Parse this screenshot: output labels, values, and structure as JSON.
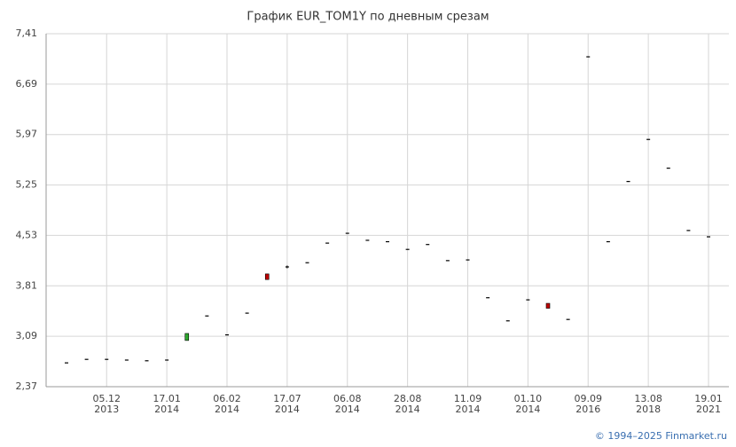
{
  "chart_data": {
    "type": "candlestick",
    "title": "График EUR_TOM1Y по дневным срезам",
    "categories": [
      null,
      null,
      "05.12",
      null,
      null,
      "17.01",
      null,
      null,
      "06.02",
      null,
      null,
      "17.07",
      null,
      null,
      "06.08",
      null,
      null,
      "28.08",
      null,
      null,
      "11.09",
      null,
      null,
      "01.10",
      null,
      null,
      "09.09",
      null,
      null,
      "13.08",
      null,
      null,
      "19.01"
    ],
    "category_years": [
      null,
      null,
      "2013",
      null,
      null,
      "2014",
      null,
      null,
      "2014",
      null,
      null,
      "2014",
      null,
      null,
      "2014",
      null,
      null,
      "2014",
      null,
      null,
      "2014",
      null,
      null,
      "2014",
      null,
      null,
      "2016",
      null,
      null,
      "2018",
      null,
      null,
      "2021"
    ],
    "open": [
      2.71,
      2.76,
      2.76,
      2.75,
      2.74,
      2.75,
      3.03,
      3.38,
      3.11,
      3.42,
      3.98,
      4.08,
      4.14,
      4.42,
      4.56,
      4.46,
      4.44,
      4.33,
      4.4,
      4.17,
      4.18,
      3.64,
      3.31,
      3.61,
      3.56,
      3.33,
      7.08,
      4.44,
      5.3,
      5.9,
      5.49,
      4.6,
      4.51
    ],
    "high": [
      2.71,
      2.76,
      2.76,
      2.75,
      2.74,
      2.75,
      3.13,
      3.38,
      3.11,
      3.42,
      3.98,
      4.1,
      4.14,
      4.42,
      4.56,
      4.46,
      4.44,
      4.33,
      4.4,
      4.17,
      4.18,
      3.64,
      3.31,
      3.61,
      3.56,
      3.33,
      7.08,
      4.44,
      5.3,
      5.9,
      5.49,
      4.6,
      4.51
    ],
    "low": [
      2.71,
      2.76,
      2.76,
      2.75,
      2.74,
      2.75,
      3.03,
      3.38,
      3.11,
      3.42,
      3.9,
      4.06,
      4.14,
      4.42,
      4.56,
      4.46,
      4.44,
      4.33,
      4.4,
      4.17,
      4.18,
      3.64,
      3.31,
      3.61,
      3.49,
      3.33,
      7.08,
      4.44,
      5.3,
      5.9,
      5.49,
      4.6,
      4.51
    ],
    "close": [
      2.71,
      2.76,
      2.76,
      2.75,
      2.74,
      2.75,
      3.13,
      3.38,
      3.11,
      3.42,
      3.9,
      4.08,
      4.14,
      4.42,
      4.56,
      4.46,
      4.44,
      4.33,
      4.4,
      4.17,
      4.18,
      3.64,
      3.31,
      3.61,
      3.49,
      3.33,
      7.08,
      4.44,
      5.3,
      5.9,
      5.49,
      4.6,
      4.51
    ],
    "up_color": "#2ea82e",
    "down_color": "#c00000",
    "flat_color": "#000000",
    "ylim": [
      2.37,
      7.41
    ],
    "yticks": [
      {
        "value": 2.37,
        "label": "2,37"
      },
      {
        "value": 3.09,
        "label": "3,09"
      },
      {
        "value": 3.81,
        "label": "3,81"
      },
      {
        "value": 4.53,
        "label": "4,53"
      },
      {
        "value": 5.25,
        "label": "5,25"
      },
      {
        "value": 5.97,
        "label": "5,97"
      },
      {
        "value": 6.69,
        "label": "6,69"
      },
      {
        "value": 7.41,
        "label": "7,41"
      }
    ],
    "grid": true
  },
  "footer": "© 1994–2025 Finmarket.ru"
}
